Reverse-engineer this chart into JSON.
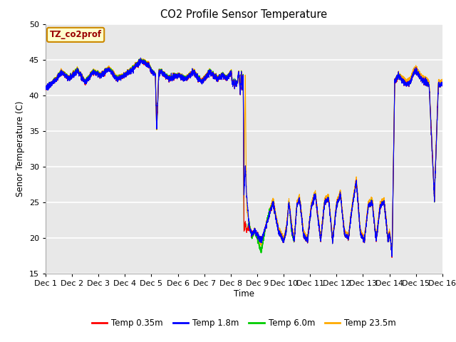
{
  "title": "CO2 Profile Sensor Temperature",
  "ylabel": "Senor Temperature (C)",
  "xlabel": "Time",
  "ylim": [
    15,
    50
  ],
  "annotation_text": "TZ_co2prof",
  "annotation_bgcolor": "#ffffcc",
  "annotation_edgecolor": "#cc8800",
  "legend_labels": [
    "Temp 0.35m",
    "Temp 1.8m",
    "Temp 6.0m",
    "Temp 23.5m"
  ],
  "legend_colors": [
    "#ff0000",
    "#0000ff",
    "#00cc00",
    "#ffaa00"
  ],
  "line_width": 0.8,
  "figure_bgcolor": "#ffffff",
  "plot_bg_color": "#e8e8e8",
  "grid_color": "#ffffff",
  "x_tick_labels": [
    "Dec 1",
    "Dec 2",
    "Dec 3",
    "Dec 4",
    "Dec 5",
    "Dec 6",
    "Dec 7",
    "Dec 8",
    "Dec 9",
    "Dec 10",
    "Dec 11",
    "Dec 12",
    "Dec 13",
    "Dec 14",
    "Dec 15",
    "Dec 16"
  ],
  "figsize": [
    6.4,
    4.8
  ],
  "dpi": 100
}
